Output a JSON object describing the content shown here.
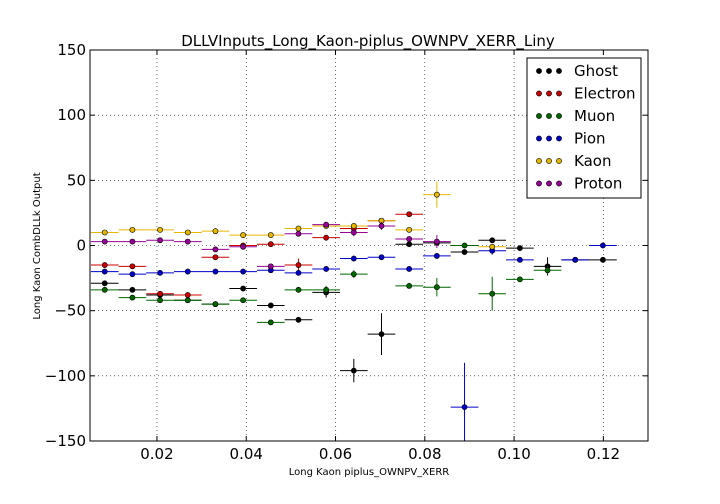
{
  "chart_data": {
    "type": "scatter",
    "title": "DLLVInputs_Long_Kaon-piplus_OWNPV_XERR_Liny",
    "xlabel": "Long Kaon piplus_OWNPV_XERR",
    "ylabel": "Long Kaon CombDLLk Output",
    "xlim": [
      0.005,
      0.13
    ],
    "ylim": [
      -150,
      150
    ],
    "xticks": [
      0.02,
      0.04,
      0.06,
      0.08,
      0.1,
      0.12
    ],
    "xtick_labels": [
      "0.02",
      "0.04",
      "0.06",
      "0.08",
      "0.10",
      "0.12"
    ],
    "yticks": [
      -150,
      -100,
      -50,
      0,
      50,
      100,
      150
    ],
    "ytick_labels": [
      "−150",
      "−100",
      "−50",
      "0",
      "50",
      "100",
      "150"
    ],
    "grid": true,
    "legend_position": "top-right",
    "bin_half_width": 0.0031,
    "series": [
      {
        "name": "Ghost",
        "color": "#000000",
        "points": [
          {
            "x": 0.0083,
            "y": -29,
            "yerr": 2
          },
          {
            "x": 0.0145,
            "y": -34,
            "yerr": 2
          },
          {
            "x": 0.0207,
            "y": -38,
            "yerr": 2
          },
          {
            "x": 0.0269,
            "y": -42,
            "yerr": 2
          },
          {
            "x": 0.0331,
            "y": -45,
            "yerr": 2
          },
          {
            "x": 0.0393,
            "y": -33,
            "yerr": 2
          },
          {
            "x": 0.0455,
            "y": -46,
            "yerr": 2
          },
          {
            "x": 0.0517,
            "y": -57,
            "yerr": 2
          },
          {
            "x": 0.0579,
            "y": -36,
            "yerr": 4
          },
          {
            "x": 0.0641,
            "y": -96,
            "yerr": 9
          },
          {
            "x": 0.0703,
            "y": -68,
            "yerr": 16
          },
          {
            "x": 0.0765,
            "y": 1,
            "yerr": 2
          },
          {
            "x": 0.0827,
            "y": 2,
            "yerr": 2
          },
          {
            "x": 0.0889,
            "y": -5,
            "yerr": 2
          },
          {
            "x": 0.0951,
            "y": 4,
            "yerr": 2
          },
          {
            "x": 0.1013,
            "y": -2,
            "yerr": 2
          },
          {
            "x": 0.1075,
            "y": -16,
            "yerr": 7
          },
          {
            "x": 0.1137,
            "y": -11,
            "yerr": 2
          },
          {
            "x": 0.1199,
            "y": -11,
            "yerr": 2
          }
        ]
      },
      {
        "name": "Electron",
        "color": "#cc0000",
        "points": [
          {
            "x": 0.0083,
            "y": -15,
            "yerr": 2
          },
          {
            "x": 0.0145,
            "y": -16,
            "yerr": 2
          },
          {
            "x": 0.0207,
            "y": -37,
            "yerr": 2
          },
          {
            "x": 0.0269,
            "y": -38,
            "yerr": 2
          },
          {
            "x": 0.0331,
            "y": -9,
            "yerr": 2
          },
          {
            "x": 0.0393,
            "y": 0,
            "yerr": 2
          },
          {
            "x": 0.0455,
            "y": 1,
            "yerr": 2
          },
          {
            "x": 0.0517,
            "y": -15,
            "yerr": 5
          },
          {
            "x": 0.0579,
            "y": 6,
            "yerr": 2
          },
          {
            "x": 0.0641,
            "y": 13,
            "yerr": 2
          },
          {
            "x": 0.0703,
            "y": 19,
            "yerr": 2
          },
          {
            "x": 0.0765,
            "y": 24,
            "yerr": 2
          }
        ]
      },
      {
        "name": "Muon",
        "color": "#006600",
        "points": [
          {
            "x": 0.0083,
            "y": -34,
            "yerr": 2
          },
          {
            "x": 0.0145,
            "y": -40,
            "yerr": 2
          },
          {
            "x": 0.0207,
            "y": -42,
            "yerr": 2
          },
          {
            "x": 0.0269,
            "y": -42,
            "yerr": 2
          },
          {
            "x": 0.0331,
            "y": -45,
            "yerr": 2
          },
          {
            "x": 0.0393,
            "y": -42,
            "yerr": 2
          },
          {
            "x": 0.0455,
            "y": -59,
            "yerr": 2
          },
          {
            "x": 0.0517,
            "y": -34,
            "yerr": 2
          },
          {
            "x": 0.0579,
            "y": -34,
            "yerr": 3
          },
          {
            "x": 0.0641,
            "y": -22,
            "yerr": 3
          },
          {
            "x": 0.0765,
            "y": -31,
            "yerr": 2
          },
          {
            "x": 0.0827,
            "y": -32,
            "yerr": 7
          },
          {
            "x": 0.0889,
            "y": 0,
            "yerr": 2
          },
          {
            "x": 0.0951,
            "y": -37,
            "yerr": 13
          },
          {
            "x": 0.1013,
            "y": -26,
            "yerr": 2
          },
          {
            "x": 0.1075,
            "y": -19,
            "yerr": 3
          }
        ]
      },
      {
        "name": "Pion",
        "color": "#0000cc",
        "points": [
          {
            "x": 0.0083,
            "y": -20,
            "yerr": 2
          },
          {
            "x": 0.0145,
            "y": -22,
            "yerr": 2
          },
          {
            "x": 0.0207,
            "y": -21,
            "yerr": 2
          },
          {
            "x": 0.0269,
            "y": -20,
            "yerr": 2
          },
          {
            "x": 0.0331,
            "y": -20,
            "yerr": 2
          },
          {
            "x": 0.0393,
            "y": -20,
            "yerr": 2
          },
          {
            "x": 0.0455,
            "y": -19,
            "yerr": 2
          },
          {
            "x": 0.0517,
            "y": -21,
            "yerr": 2
          },
          {
            "x": 0.0579,
            "y": -18,
            "yerr": 2
          },
          {
            "x": 0.0641,
            "y": -10,
            "yerr": 2
          },
          {
            "x": 0.0703,
            "y": -9,
            "yerr": 2
          },
          {
            "x": 0.0765,
            "y": -18,
            "yerr": 2
          },
          {
            "x": 0.0827,
            "y": -8,
            "yerr": 2
          },
          {
            "x": 0.0889,
            "y": -124,
            "yerr": 34
          },
          {
            "x": 0.0951,
            "y": -4,
            "yerr": 3
          },
          {
            "x": 0.1013,
            "y": -11,
            "yerr": 2
          },
          {
            "x": 0.1137,
            "y": -11,
            "yerr": 2
          },
          {
            "x": 0.1199,
            "y": 0,
            "yerr": 2
          }
        ]
      },
      {
        "name": "Kaon",
        "color": "#e6b800",
        "points": [
          {
            "x": 0.0083,
            "y": 10,
            "yerr": 2
          },
          {
            "x": 0.0145,
            "y": 12,
            "yerr": 2
          },
          {
            "x": 0.0207,
            "y": 12,
            "yerr": 2
          },
          {
            "x": 0.0269,
            "y": 10,
            "yerr": 2
          },
          {
            "x": 0.0331,
            "y": 11,
            "yerr": 2
          },
          {
            "x": 0.0393,
            "y": 8,
            "yerr": 2
          },
          {
            "x": 0.0455,
            "y": 8,
            "yerr": 2
          },
          {
            "x": 0.0517,
            "y": 13,
            "yerr": 2
          },
          {
            "x": 0.0579,
            "y": 15,
            "yerr": 2
          },
          {
            "x": 0.0641,
            "y": 15,
            "yerr": 2
          },
          {
            "x": 0.0703,
            "y": 19,
            "yerr": 2
          },
          {
            "x": 0.0765,
            "y": 12,
            "yerr": 2
          },
          {
            "x": 0.0827,
            "y": 39,
            "yerr": 10
          },
          {
            "x": 0.0951,
            "y": -1,
            "yerr": 2
          }
        ]
      },
      {
        "name": "Proton",
        "color": "#990099",
        "points": [
          {
            "x": 0.0083,
            "y": 3,
            "yerr": 2
          },
          {
            "x": 0.0145,
            "y": 3,
            "yerr": 2
          },
          {
            "x": 0.0207,
            "y": 4,
            "yerr": 2
          },
          {
            "x": 0.0269,
            "y": 3,
            "yerr": 2
          },
          {
            "x": 0.0331,
            "y": -3,
            "yerr": 2
          },
          {
            "x": 0.0393,
            "y": -1,
            "yerr": 2
          },
          {
            "x": 0.0455,
            "y": -16,
            "yerr": 2
          },
          {
            "x": 0.0517,
            "y": 9,
            "yerr": 2
          },
          {
            "x": 0.0579,
            "y": 16,
            "yerr": 2
          },
          {
            "x": 0.0641,
            "y": 10,
            "yerr": 3
          },
          {
            "x": 0.0703,
            "y": 15,
            "yerr": 3
          },
          {
            "x": 0.0765,
            "y": 5,
            "yerr": 2
          },
          {
            "x": 0.0827,
            "y": 3,
            "yerr": 5
          }
        ]
      }
    ]
  }
}
